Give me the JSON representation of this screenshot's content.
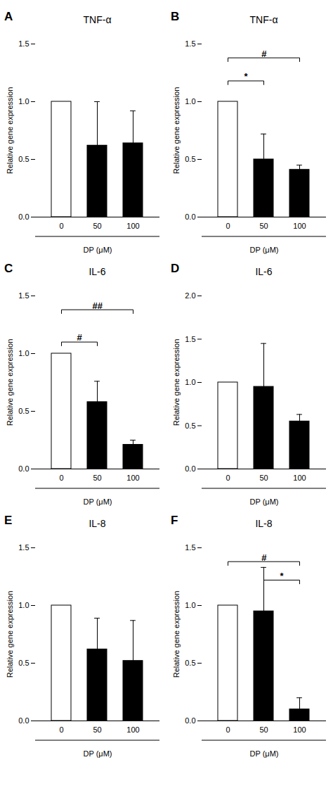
{
  "chart_data": [
    {
      "type": "bar",
      "panel_label": "A",
      "title": "TNF-α",
      "xlabel": "DP (μM)",
      "ylabel": "Relative gene expression",
      "categories": [
        "0",
        "50",
        "100"
      ],
      "values": [
        1.0,
        0.62,
        0.64
      ],
      "errors": [
        0.0,
        0.38,
        0.28
      ],
      "colors": [
        "white",
        "black",
        "black"
      ],
      "ylim": [
        0,
        1.5
      ],
      "yticks": [
        {
          "value": 0.0,
          "label": "0.0"
        },
        0.5,
        {
          "value": 1.0,
          "label": "1.0"
        },
        1.5
      ],
      "annotations": []
    },
    {
      "type": "bar",
      "panel_label": "B",
      "title": "TNF-α",
      "xlabel": "DP (μM)",
      "ylabel": "Relative gene expression",
      "categories": [
        "0",
        "50",
        "100"
      ],
      "values": [
        1.0,
        0.5,
        0.41
      ],
      "errors": [
        0.0,
        0.22,
        0.04
      ],
      "colors": [
        "white",
        "black",
        "black"
      ],
      "ylim": [
        0,
        1.5
      ],
      "yticks": [
        {
          "value": 0.0,
          "label": "0.0"
        },
        0.5,
        {
          "value": 1.0,
          "label": "1.0"
        },
        1.5
      ],
      "annotations": [
        {
          "x1": "0",
          "x2": "50",
          "y": 1.18,
          "text": "*"
        },
        {
          "x1": "0",
          "x2": "100",
          "y": 1.38,
          "text": "#"
        }
      ]
    },
    {
      "type": "bar",
      "panel_label": "C",
      "title": "IL-6",
      "xlabel": "DP (μM)",
      "ylabel": "Relative gene expression",
      "categories": [
        "0",
        "50",
        "100"
      ],
      "values": [
        1.0,
        0.58,
        0.21
      ],
      "errors": [
        0.0,
        0.18,
        0.04
      ],
      "colors": [
        "white",
        "black",
        "black"
      ],
      "ylim": [
        0,
        1.5
      ],
      "yticks": [
        {
          "value": 0.0,
          "label": "0.0"
        },
        0.5,
        {
          "value": 1.0,
          "label": "1.0"
        },
        1.5
      ],
      "annotations": [
        {
          "x1": "0",
          "x2": "50",
          "y": 1.1,
          "text": "#"
        },
        {
          "x1": "0",
          "x2": "100",
          "y": 1.38,
          "text": "##"
        }
      ]
    },
    {
      "type": "bar",
      "panel_label": "D",
      "title": "IL-6",
      "xlabel": "DP (μM)",
      "ylabel": "Relative gene expression",
      "categories": [
        "0",
        "50",
        "100"
      ],
      "values": [
        1.0,
        0.95,
        0.55
      ],
      "errors": [
        0.0,
        0.5,
        0.08
      ],
      "colors": [
        "white",
        "black",
        "black"
      ],
      "ylim": [
        0,
        2.0
      ],
      "yticks": [
        {
          "value": 0.0,
          "label": "0.0"
        },
        0.5,
        {
          "value": 1.0,
          "label": "1.0"
        },
        1.5,
        {
          "value": 2.0,
          "label": "2.0"
        }
      ],
      "annotations": []
    },
    {
      "type": "bar",
      "panel_label": "E",
      "title": "IL-8",
      "xlabel": "DP (μM)",
      "ylabel": "Relative gene expression",
      "categories": [
        "0",
        "50",
        "100"
      ],
      "values": [
        1.0,
        0.62,
        0.52
      ],
      "errors": [
        0.0,
        0.27,
        0.35
      ],
      "colors": [
        "white",
        "black",
        "black"
      ],
      "ylim": [
        0,
        1.5
      ],
      "yticks": [
        {
          "value": 0.0,
          "label": "0.0"
        },
        0.5,
        {
          "value": 1.0,
          "label": "1.0"
        },
        1.5
      ],
      "annotations": []
    },
    {
      "type": "bar",
      "panel_label": "F",
      "title": "IL-8",
      "xlabel": "DP (μM)",
      "ylabel": "Relative gene expression",
      "categories": [
        "0",
        "50",
        "100"
      ],
      "values": [
        1.0,
        0.95,
        0.1
      ],
      "errors": [
        0.0,
        0.38,
        0.1
      ],
      "colors": [
        "white",
        "black",
        "black"
      ],
      "ylim": [
        0,
        1.5
      ],
      "yticks": [
        {
          "value": 0.0,
          "label": "0.0"
        },
        0.5,
        {
          "value": 1.0,
          "label": "1.0"
        },
        1.5
      ],
      "annotations": [
        {
          "x1": "0",
          "x2": "100",
          "y": 1.38,
          "text": "#"
        },
        {
          "x1": "50",
          "x2": "100",
          "y": 1.22,
          "text": "*"
        }
      ]
    }
  ]
}
